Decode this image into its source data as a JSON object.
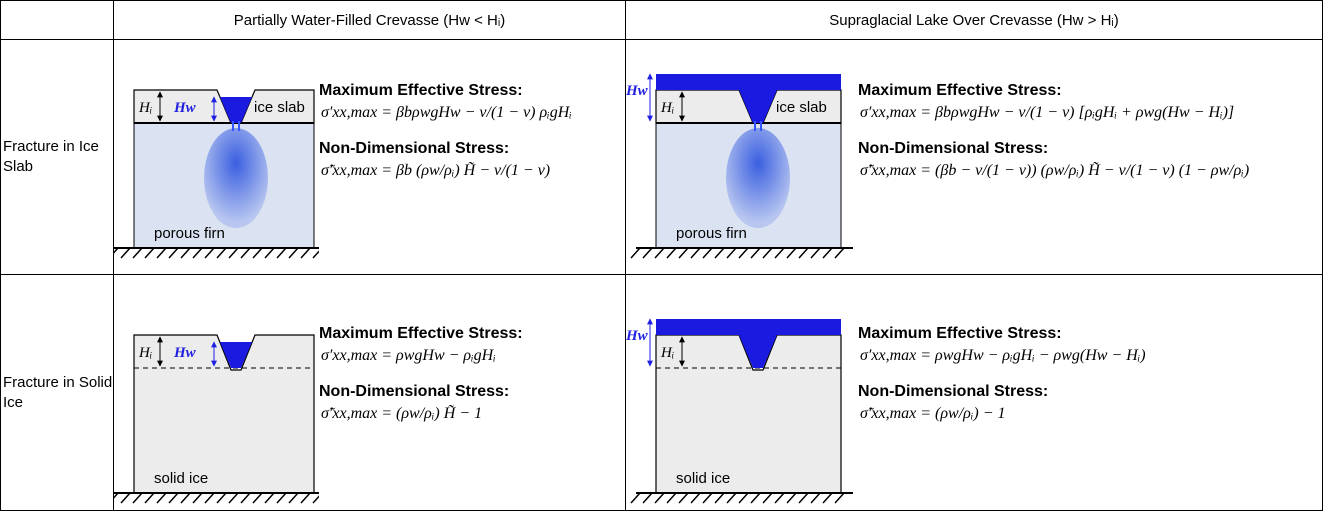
{
  "header": {
    "columns": [
      "Partially Water-Filled Crevasse (Hw < Hᵢ)",
      "Supraglacial Lake Over Crevasse (Hw > Hᵢ)"
    ]
  },
  "rows": [
    {
      "label": "Fracture in Ice Slab",
      "cells": [
        {
          "labels": {
            "hi": "Hᵢ",
            "hw": "Hw",
            "layer": "ice slab",
            "base": "porous firn"
          },
          "max_heading": "Maximum Effective Stress:",
          "max_eq": "σ′xx,max = βbρwgHw − ν/(1 − ν) ρᵢgHᵢ",
          "nd_heading": "Non-Dimensional Stress:",
          "nd_eq": "σ̃′xx,max = βb (ρw/ρᵢ) H̃ − ν/(1 − ν)"
        },
        {
          "labels": {
            "hi": "Hᵢ",
            "hw": "Hw",
            "layer": "ice slab",
            "base": "porous firn"
          },
          "max_heading": "Maximum Effective Stress:",
          "max_eq": "σ′xx,max = βbρwgHw − ν/(1 − ν) [ρᵢgHᵢ + ρwg(Hw − Hᵢ)]",
          "nd_heading": "Non-Dimensional Stress:",
          "nd_eq": "σ̃′xx,max = (βb − ν/(1 − ν)) (ρw/ρᵢ) H̃ − ν/(1 − ν) (1 − ρw/ρᵢ)"
        }
      ]
    },
    {
      "label": "Fracture in Solid Ice",
      "cells": [
        {
          "labels": {
            "hi": "Hᵢ",
            "hw": "Hw",
            "base": "solid ice"
          },
          "max_heading": "Maximum Effective Stress:",
          "max_eq": "σ′xx,max = ρwgHw − ρᵢgHᵢ",
          "nd_heading": "Non-Dimensional Stress:",
          "nd_eq": "σ̃′xx,max = (ρw/ρᵢ) H̃ − 1"
        },
        {
          "labels": {
            "hi": "Hᵢ",
            "hw": "Hw",
            "base": "solid ice"
          },
          "max_heading": "Maximum Effective Stress:",
          "max_eq": "σ′xx,max = ρwgHw − ρᵢgHᵢ − ρwg(Hw − Hᵢ)",
          "nd_heading": "Non-Dimensional Stress:",
          "nd_eq": "σ̃′xx,max = (ρw/ρᵢ) − 1"
        }
      ]
    }
  ]
}
